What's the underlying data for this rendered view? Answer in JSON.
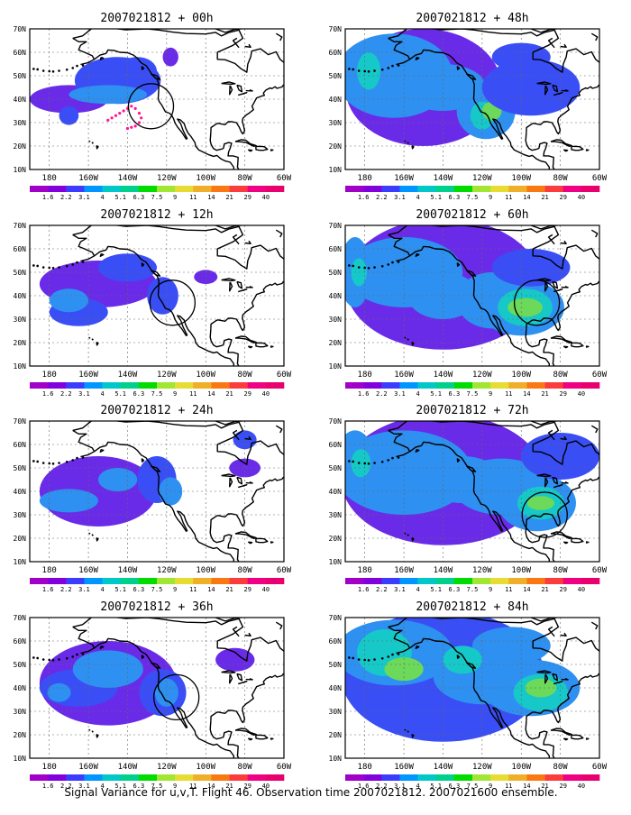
{
  "panels": [
    {
      "title": "2007021812 + 00h",
      "circle": [
        -128,
        37
      ],
      "dots": true,
      "blobs": [
        [
          -170,
          40,
          20,
          6,
          2
        ],
        [
          -145,
          48,
          22,
          10,
          3
        ],
        [
          -150,
          42,
          20,
          4,
          4
        ],
        [
          -170,
          33,
          5,
          4,
          3
        ],
        [
          -135,
          52,
          10,
          6,
          3
        ],
        [
          -118,
          58,
          4,
          4,
          2
        ]
      ]
    },
    {
      "title": "2007021812 + 48h",
      "circle": null,
      "dots": false,
      "blobs": [
        [
          -150,
          45,
          40,
          25,
          2
        ],
        [
          -165,
          50,
          30,
          18,
          4
        ],
        [
          -140,
          45,
          22,
          10,
          4
        ],
        [
          -118,
          35,
          15,
          12,
          4
        ],
        [
          -120,
          33,
          6,
          6,
          5
        ],
        [
          -115,
          35,
          5,
          4,
          6
        ],
        [
          -100,
          58,
          15,
          6,
          3
        ],
        [
          -95,
          45,
          25,
          12,
          3
        ],
        [
          -178,
          52,
          6,
          8,
          5
        ]
      ]
    },
    {
      "title": "2007021812 + 12h",
      "circle": [
        -117,
        37
      ],
      "dots": false,
      "blobs": [
        [
          -155,
          45,
          30,
          10,
          2
        ],
        [
          -165,
          33,
          15,
          6,
          3
        ],
        [
          -140,
          52,
          15,
          6,
          3
        ],
        [
          -122,
          40,
          8,
          8,
          3
        ],
        [
          -170,
          38,
          10,
          5,
          4
        ],
        [
          -100,
          48,
          6,
          3,
          2
        ]
      ]
    },
    {
      "title": "2007021812 + 60h",
      "circle": [
        -92,
        37
      ],
      "dots": false,
      "blobs": [
        [
          -140,
          45,
          50,
          28,
          2
        ],
        [
          -160,
          50,
          30,
          15,
          4
        ],
        [
          -140,
          40,
          18,
          10,
          4
        ],
        [
          -115,
          38,
          18,
          12,
          4
        ],
        [
          -100,
          35,
          22,
          12,
          4
        ],
        [
          -98,
          35,
          14,
          8,
          5
        ],
        [
          -98,
          35,
          9,
          4,
          6
        ],
        [
          -95,
          52,
          20,
          8,
          3
        ],
        [
          -185,
          50,
          8,
          15,
          4
        ],
        [
          -183,
          50,
          4,
          6,
          5
        ]
      ]
    },
    {
      "title": "2007021812 + 24h",
      "circle": null,
      "dots": false,
      "blobs": [
        [
          -155,
          40,
          30,
          15,
          2
        ],
        [
          -170,
          36,
          15,
          5,
          4
        ],
        [
          -145,
          45,
          10,
          5,
          4
        ],
        [
          -125,
          45,
          10,
          10,
          3
        ],
        [
          -118,
          40,
          6,
          6,
          4
        ],
        [
          -80,
          62,
          6,
          4,
          3
        ],
        [
          -80,
          50,
          8,
          4,
          2
        ]
      ]
    },
    {
      "title": "2007021812 + 72h",
      "circle": [
        -88,
        30
      ],
      "dots": false,
      "blobs": [
        [
          -140,
          45,
          52,
          28,
          2
        ],
        [
          -160,
          48,
          35,
          18,
          4
        ],
        [
          -130,
          45,
          20,
          10,
          4
        ],
        [
          -110,
          42,
          25,
          12,
          4
        ],
        [
          -92,
          35,
          20,
          12,
          4
        ],
        [
          -90,
          35,
          12,
          7,
          5
        ],
        [
          -90,
          35,
          7,
          3,
          6
        ],
        [
          -185,
          52,
          10,
          14,
          4
        ],
        [
          -182,
          52,
          5,
          6,
          5
        ],
        [
          -80,
          55,
          20,
          10,
          3
        ]
      ]
    },
    {
      "title": "2007021812 + 36h",
      "circle": [
        -115,
        36
      ],
      "dots": false,
      "blobs": [
        [
          -150,
          42,
          35,
          18,
          2
        ],
        [
          -165,
          40,
          20,
          8,
          3
        ],
        [
          -150,
          48,
          18,
          8,
          4
        ],
        [
          -122,
          38,
          12,
          10,
          3
        ],
        [
          -120,
          38,
          6,
          6,
          4
        ],
        [
          -175,
          38,
          6,
          4,
          4
        ],
        [
          -85,
          52,
          10,
          5,
          2
        ]
      ]
    },
    {
      "title": "2007021812 + 84h",
      "circle": null,
      "dots": false,
      "blobs": [
        [
          -140,
          45,
          52,
          28,
          3
        ],
        [
          -165,
          55,
          30,
          14,
          4
        ],
        [
          -170,
          55,
          14,
          10,
          5
        ],
        [
          -160,
          48,
          10,
          5,
          6
        ],
        [
          -120,
          45,
          25,
          12,
          4
        ],
        [
          -95,
          40,
          25,
          12,
          4
        ],
        [
          -90,
          38,
          14,
          8,
          5
        ],
        [
          -90,
          40,
          8,
          4,
          6
        ],
        [
          -105,
          58,
          20,
          8,
          4
        ],
        [
          -130,
          52,
          10,
          6,
          5
        ]
      ]
    }
  ],
  "colorbar_labels": [
    "1.6",
    "2.2",
    "3.1",
    "4",
    "5.1",
    "6.3",
    "7.5",
    "9",
    "11",
    "14",
    "21",
    "29",
    "40"
  ],
  "colorbar_colors": [
    "#a000c8",
    "#8200dc",
    "#3c3cff",
    "#0096ff",
    "#00c8c8",
    "#00d08c",
    "#00dc00",
    "#a0e632",
    "#e6dc32",
    "#f0af28",
    "#fa7814",
    "#fa3c3c",
    "#f00082"
  ],
  "shade_colors": [
    "#ffffff",
    "#9b23e6",
    "#6a2be8",
    "#3a4ef5",
    "#2e90f0",
    "#16c8c8",
    "#6cd95a"
  ],
  "lat_labels": [
    "10N",
    "20N",
    "30N",
    "40N",
    "50N",
    "60N",
    "70N"
  ],
  "lon_labels": [
    "180",
    "160W",
    "140W",
    "120W",
    "100W",
    "80W",
    "60W"
  ],
  "caption": "Signal Variance for u,v,T. Flight 46. Observation time 2007021812. 2007021600 ensemble."
}
